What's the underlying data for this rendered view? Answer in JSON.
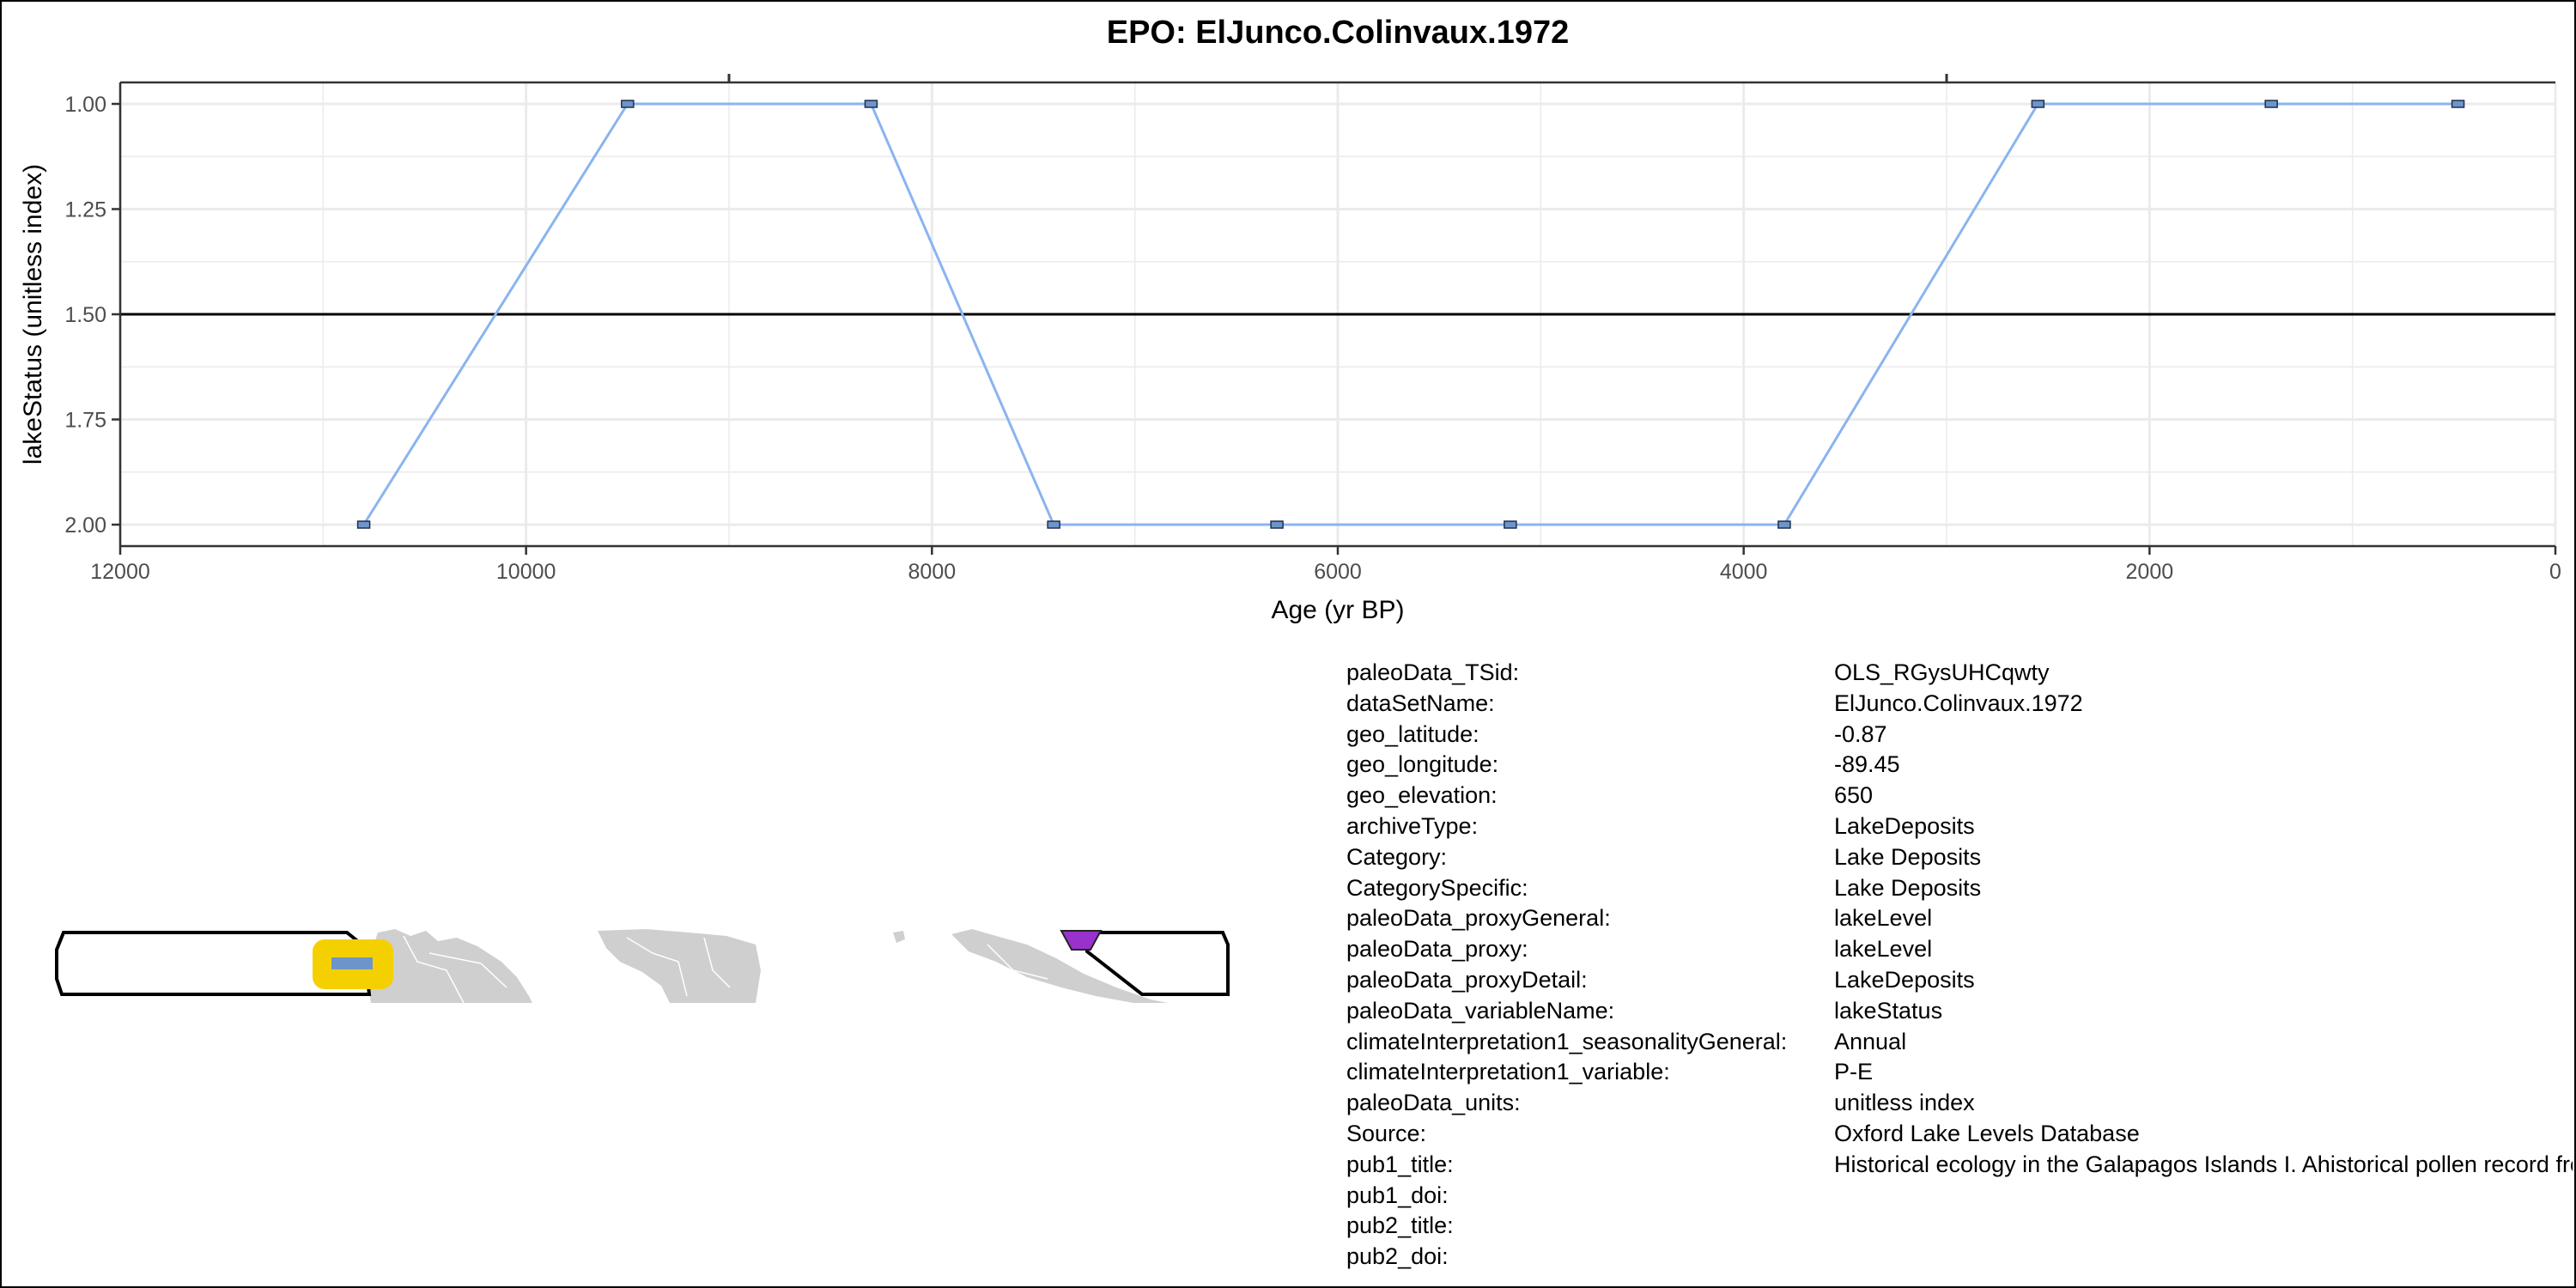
{
  "chart_data": {
    "type": "line",
    "title": "EPO: ElJunco.Colinvaux.1972",
    "xlabel": "Age (yr BP)",
    "ylabel": "lakeStatus (unitless index)",
    "x_reversed": true,
    "y_reversed": true,
    "xlim": [
      12000,
      0
    ],
    "ylim": [
      1.0,
      2.0
    ],
    "x_ticks": [
      12000,
      10000,
      8000,
      6000,
      4000,
      2000,
      0
    ],
    "x_tick_labels": [
      "12000",
      "10000",
      "8000",
      "6000",
      "4000",
      "2000",
      "0"
    ],
    "y_ticks": [
      1.0,
      1.25,
      1.5,
      1.75,
      2.0
    ],
    "y_tick_labels": [
      "1.00",
      "1.25",
      "1.50",
      "1.75",
      "2.00"
    ],
    "reference_line_y": 1.5,
    "grid": true,
    "series": [
      {
        "x": [
          10800,
          9500,
          8300,
          7400,
          6300,
          5150,
          3800,
          2550,
          1400,
          480
        ],
        "y": [
          2,
          1,
          1,
          2,
          2,
          2,
          2,
          1,
          1,
          1
        ]
      }
    ],
    "colors": {
      "line": "#8ab4f0",
      "marker_fill": "#6e95c9",
      "marker_edge": "#1f2f4f",
      "grid": "#ebebeb",
      "ref_line": "#000000"
    }
  },
  "map": {
    "land_color": "#cfcfcf",
    "site_marker_color": "#f5d000",
    "site_marker_inner_color": "#6e95c9",
    "region_marker_color": "#9932cc"
  },
  "metadata": [
    {
      "key": "paleoData_TSid:",
      "value": "OLS_RGysUHCqwty"
    },
    {
      "key": "dataSetName:",
      "value": "ElJunco.Colinvaux.1972"
    },
    {
      "key": "geo_latitude:",
      "value": "-0.87"
    },
    {
      "key": "geo_longitude:",
      "value": "-89.45"
    },
    {
      "key": "geo_elevation:",
      "value": "650"
    },
    {
      "key": "archiveType:",
      "value": "LakeDeposits"
    },
    {
      "key": "Category:",
      "value": "Lake Deposits"
    },
    {
      "key": "CategorySpecific:",
      "value": "Lake Deposits"
    },
    {
      "key": "paleoData_proxyGeneral:",
      "value": "lakeLevel"
    },
    {
      "key": "paleoData_proxy:",
      "value": "lakeLevel"
    },
    {
      "key": "paleoData_proxyDetail:",
      "value": "LakeDeposits"
    },
    {
      "key": "paleoData_variableName:",
      "value": "lakeStatus"
    },
    {
      "key": "climateInterpretation1_seasonalityGeneral:",
      "value": "Annual"
    },
    {
      "key": "climateInterpretation1_variable:",
      "value": "P-E"
    },
    {
      "key": "paleoData_units:",
      "value": "unitless index"
    },
    {
      "key": "Source:",
      "value": "Oxford Lake Levels Database"
    },
    {
      "key": "pub1_title:",
      "value": "Historical ecology in the Galapagos Islands I. Ahistorical pollen record from El Junco Lake, Isla San Cristobal"
    },
    {
      "key": "pub1_doi:",
      "value": ""
    },
    {
      "key": "pub2_title:",
      "value": ""
    },
    {
      "key": "pub2_doi:",
      "value": ""
    }
  ]
}
